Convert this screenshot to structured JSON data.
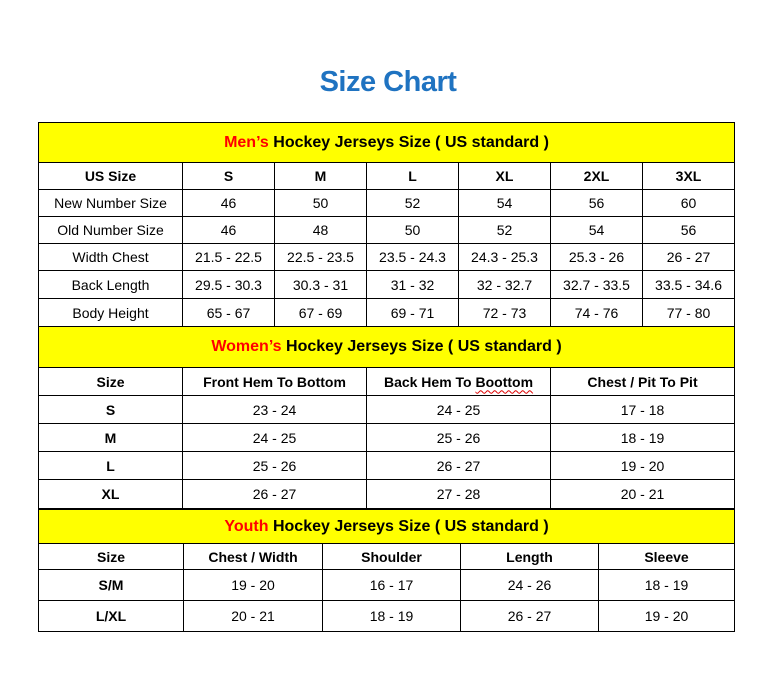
{
  "title": "Size Chart",
  "colors": {
    "title": "#1f73c1",
    "section_bg": "#ffff00",
    "section_highlight": "#ff0000"
  },
  "mens": {
    "heading_highlight": "Men’s",
    "heading_rest": " Hockey Jerseys Size ( US standard )",
    "columns": [
      "US Size",
      "S",
      "M",
      "L",
      "XL",
      "2XL",
      "3XL"
    ],
    "rows": [
      [
        "New Number Size",
        "46",
        "50",
        "52",
        "54",
        "56",
        "60"
      ],
      [
        "Old Number Size",
        "46",
        "48",
        "50",
        "52",
        "54",
        "56"
      ],
      [
        "Width Chest",
        "21.5 - 22.5",
        "22.5 - 23.5",
        "23.5 - 24.3",
        "24.3 - 25.3",
        "25.3 - 26",
        "26 - 27"
      ],
      [
        "Back Length",
        "29.5 - 30.3",
        "30.3 - 31",
        "31 - 32",
        "32 - 32.7",
        "32.7 - 33.5",
        "33.5 - 34.6"
      ],
      [
        "Body Height",
        "65 - 67",
        "67 - 69",
        "69 - 71",
        "72 - 73",
        "74 - 76",
        "77 - 80"
      ]
    ]
  },
  "womens": {
    "heading_highlight": "Women’s",
    "heading_rest": " Hockey Jerseys Size ( US standard )",
    "columns": [
      "Size",
      "Front Hem To Bottom",
      "Back Hem To ",
      "Boottom",
      "Chest / Pit To Pit"
    ],
    "rows": [
      [
        "S",
        "23 - 24",
        "24 - 25",
        "17 - 18"
      ],
      [
        "M",
        "24 - 25",
        "25 - 26",
        "18 - 19"
      ],
      [
        "L",
        "25 - 26",
        "26 - 27",
        "19 - 20"
      ],
      [
        "XL",
        "26 - 27",
        "27 - 28",
        "20 - 21"
      ]
    ]
  },
  "youth": {
    "heading_highlight": "Youth",
    "heading_rest": " Hockey Jerseys Size ( US standard )",
    "columns": [
      "Size",
      "Chest / Width",
      "Shoulder",
      "Length",
      "Sleeve"
    ],
    "rows": [
      [
        "S/M",
        "19 - 20",
        "16 - 17",
        "24 - 26",
        "18 - 19"
      ],
      [
        "L/XL",
        "20 - 21",
        "18 - 19",
        "26 - 27",
        "19 - 20"
      ]
    ]
  }
}
